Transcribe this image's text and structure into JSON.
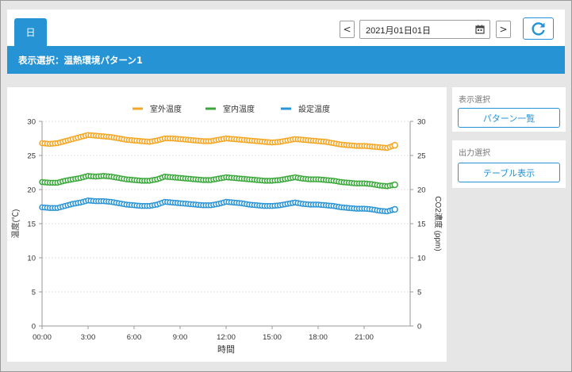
{
  "header": {
    "tab_label": "日",
    "date_value": "2021月01日01日",
    "prev_label": "<",
    "next_label": ">"
  },
  "bar": {
    "title": "表示選択：温熱環境パターン1"
  },
  "side": {
    "display_title": "表示選択",
    "pattern_button": "パターン一覧",
    "output_title": "出力選択",
    "table_button": "テーブル表示"
  },
  "colors": {
    "accent": "#2593d4",
    "outdoor": "#f5a623",
    "indoor": "#3aa83a",
    "setpoint": "#2b95d6"
  },
  "icons": {
    "calendar": "calendar-icon",
    "refresh": "refresh-icon"
  },
  "chart_data": {
    "type": "line",
    "xlabel": "時間",
    "ylabel": "温度(℃)",
    "y2label": "CO2濃度 (ppm)",
    "ylim": [
      0,
      30
    ],
    "y_ticks": [
      "0",
      "5",
      "10",
      "15",
      "20",
      "25",
      "30"
    ],
    "x_ticks": [
      "00:00",
      "3:00",
      "6:00",
      "9:00",
      "12:00",
      "15:00",
      "18:00",
      "21:00"
    ],
    "x_hours": [
      0,
      0.5,
      1,
      1.5,
      2,
      2.5,
      3,
      3.5,
      4,
      4.5,
      5,
      5.5,
      6,
      6.5,
      7,
      7.5,
      8,
      8.5,
      9,
      9.5,
      10,
      10.5,
      11,
      11.5,
      12,
      12.5,
      13,
      13.5,
      14,
      14.5,
      15,
      15.5,
      16,
      16.5,
      17,
      17.5,
      18,
      18.5,
      19,
      19.5,
      20,
      20.5,
      21,
      21.5,
      22,
      22.5,
      23
    ],
    "legend": "top",
    "grid": true,
    "series": [
      {
        "name": "室外温度",
        "color": "#f5a623",
        "values": [
          26.8,
          26.7,
          26.8,
          27.1,
          27.4,
          27.7,
          28.0,
          27.9,
          27.8,
          27.7,
          27.5,
          27.3,
          27.2,
          27.1,
          27.0,
          27.2,
          27.5,
          27.5,
          27.4,
          27.3,
          27.2,
          27.1,
          27.1,
          27.3,
          27.5,
          27.4,
          27.3,
          27.2,
          27.1,
          27.0,
          26.9,
          27.0,
          27.2,
          27.4,
          27.3,
          27.2,
          27.1,
          27.0,
          26.8,
          26.6,
          26.5,
          26.4,
          26.4,
          26.3,
          26.2,
          26.1,
          26.5
        ]
      },
      {
        "name": "室内温度",
        "color": "#3aa83a",
        "values": [
          21.1,
          21.0,
          21.0,
          21.3,
          21.5,
          21.7,
          22.0,
          21.9,
          22.0,
          21.9,
          21.7,
          21.5,
          21.4,
          21.3,
          21.3,
          21.5,
          21.9,
          21.8,
          21.7,
          21.6,
          21.5,
          21.4,
          21.4,
          21.6,
          21.8,
          21.7,
          21.6,
          21.5,
          21.4,
          21.3,
          21.3,
          21.4,
          21.6,
          21.8,
          21.6,
          21.5,
          21.5,
          21.4,
          21.3,
          21.1,
          21.0,
          20.9,
          20.9,
          20.8,
          20.6,
          20.5,
          20.7
        ]
      },
      {
        "name": "設定温度",
        "color": "#2b95d6",
        "values": [
          17.4,
          17.3,
          17.3,
          17.6,
          17.9,
          18.1,
          18.4,
          18.3,
          18.3,
          18.2,
          18.0,
          17.8,
          17.7,
          17.6,
          17.6,
          17.8,
          18.2,
          18.1,
          18.0,
          17.9,
          17.8,
          17.7,
          17.7,
          17.9,
          18.2,
          18.1,
          18.0,
          17.8,
          17.7,
          17.6,
          17.6,
          17.7,
          17.9,
          18.1,
          17.9,
          17.8,
          17.8,
          17.7,
          17.6,
          17.4,
          17.3,
          17.2,
          17.2,
          17.1,
          16.9,
          16.8,
          17.1
        ]
      }
    ]
  }
}
